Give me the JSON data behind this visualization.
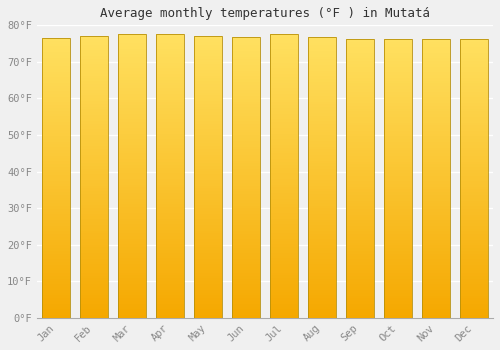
{
  "title": "Average monthly temperatures (°F ) in Mutatá",
  "months": [
    "Jan",
    "Feb",
    "Mar",
    "Apr",
    "May",
    "Jun",
    "Jul",
    "Aug",
    "Sep",
    "Oct",
    "Nov",
    "Dec"
  ],
  "values": [
    76.5,
    77.0,
    77.5,
    77.5,
    77.0,
    76.8,
    77.5,
    76.8,
    76.3,
    76.3,
    76.3,
    76.3
  ],
  "color_bottom": "#F5A800",
  "color_top": "#FFE060",
  "ylim": [
    0,
    80
  ],
  "yticks": [
    0,
    10,
    20,
    30,
    40,
    50,
    60,
    70,
    80
  ],
  "ytick_labels": [
    "0°F",
    "10°F",
    "20°F",
    "30°F",
    "40°F",
    "50°F",
    "60°F",
    "70°F",
    "80°F"
  ],
  "background_color": "#f0f0f0",
  "grid_color": "#ffffff",
  "title_fontsize": 9,
  "tick_fontsize": 7.5,
  "bar_edge_color": "#b8900a",
  "bar_width": 0.72
}
